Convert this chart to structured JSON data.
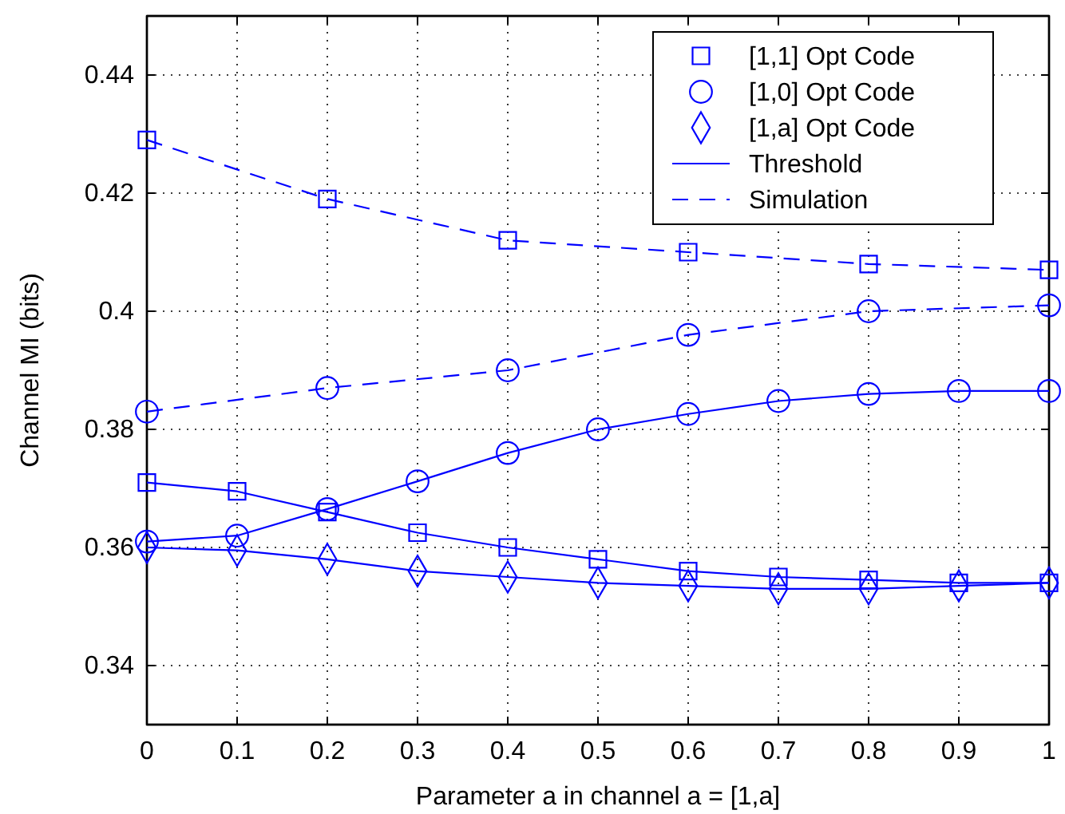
{
  "chart_data": {
    "type": "line",
    "xlabel": "Parameter a in channel  a = [1,a]",
    "ylabel": "Channel MI (bits)",
    "xlim": [
      0,
      1
    ],
    "xticks": [
      0,
      0.1,
      0.2,
      0.3,
      0.4,
      0.5,
      0.6,
      0.7,
      0.8,
      0.9,
      1
    ],
    "ylim": [
      0.33,
      0.45
    ],
    "yticks": [
      0.34,
      0.36,
      0.38,
      {
        "value": 0.4,
        "label": "0.4"
      },
      0.42,
      0.44
    ],
    "grid": true,
    "legend": "top right",
    "series": [
      {
        "name": "[1,1] Opt Code",
        "color": "#0000ff",
        "marker": "square",
        "line_style": "solid",
        "x": [
          0,
          0.1,
          0.2,
          0.3,
          0.4,
          0.5,
          0.6,
          0.7,
          0.8,
          0.9,
          1
        ],
        "values": [
          0.371,
          0.3695,
          0.366,
          0.3625,
          0.36,
          0.358,
          0.356,
          0.355,
          0.3545,
          0.354,
          0.354
        ]
      },
      {
        "name": "[1,0] Opt Code",
        "color": "#0000ff",
        "marker": "circle",
        "line_style": "solid",
        "x": [
          0,
          0.1,
          0.2,
          0.3,
          0.4,
          0.5,
          0.6,
          0.7,
          0.8,
          0.9,
          1
        ],
        "values": [
          0.361,
          0.362,
          0.3665,
          0.3712,
          0.376,
          0.38,
          0.3826,
          0.3848,
          0.386,
          0.3865,
          0.3865
        ]
      },
      {
        "name": "[1,a] Opt Code",
        "color": "#0000ff",
        "marker": "diamond",
        "line_style": "solid",
        "x": [
          0,
          0.1,
          0.2,
          0.3,
          0.4,
          0.5,
          0.6,
          0.7,
          0.8,
          0.9,
          1
        ],
        "values": [
          0.36,
          0.3595,
          0.358,
          0.356,
          0.355,
          0.354,
          0.3535,
          0.353,
          0.353,
          0.3535,
          0.354
        ]
      },
      {
        "name": "Threshold",
        "color": "#0000ff",
        "marker": "none",
        "line_style": "solid"
      },
      {
        "name": "Simulation",
        "color": "#0000ff",
        "marker": "square",
        "line_style": "dashed",
        "x": [
          0,
          0.2,
          0.4,
          0.6,
          0.8,
          1
        ],
        "values": [
          0.429,
          0.419,
          0.412,
          0.41,
          0.408,
          0.407
        ]
      },
      {
        "color": "#0000ff",
        "marker": "circle",
        "line_style": "dashed",
        "x": [
          0,
          0.2,
          0.4,
          0.6,
          0.8,
          1
        ],
        "values": [
          0.383,
          0.387,
          0.39,
          0.396,
          0.4,
          0.401
        ]
      }
    ]
  }
}
